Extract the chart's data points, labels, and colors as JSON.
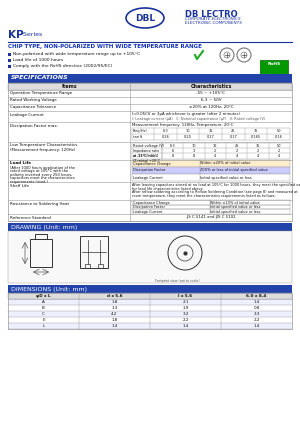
{
  "bg_color": "#ffffff",
  "header_bg": "#2244aa",
  "header_fg": "#ffffff",
  "blue_dark": "#1a3399",
  "blue_title": "#1133bb",
  "text_color": "#111111",
  "gray_border": "#999999",
  "light_gray": "#dddddd",
  "subtitle": "CHIP TYPE, NON-POLARIZED WITH WIDE TEMPERATURE RANGE",
  "bullets": [
    "Non-polarized with wide temperature range up to +105°C",
    "Load life of 1000 hours",
    "Comply with the RoHS directive (2002/95/EC)"
  ],
  "spec_title": "SPECIFICATIONS",
  "drawing_title": "DRAWING (Unit: mm)",
  "dimensions_title": "DIMENSIONS (Unit: mm)",
  "dim_headers": [
    "φD x L",
    "d x 5.6",
    "l x 5.6",
    "6.0 x 8.4"
  ],
  "dim_rows": [
    [
      "A",
      "1.8",
      "2.1",
      "1.4"
    ],
    [
      "B",
      "1.3",
      "1.9",
      "0.8"
    ],
    [
      "C",
      "4.2",
      "3.2",
      "3.3"
    ],
    [
      "E",
      "1.8",
      "2.2",
      "2.2"
    ],
    [
      "L",
      "1.4",
      "1.4",
      "1.4"
    ]
  ]
}
